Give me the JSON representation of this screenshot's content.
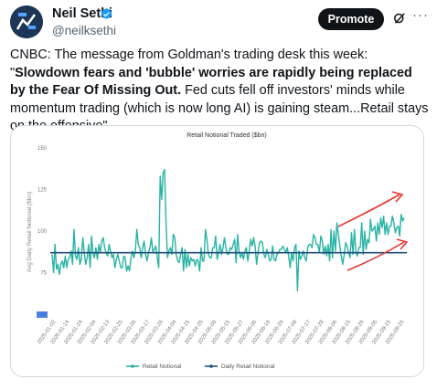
{
  "post": {
    "author_name": "Neil Sethi",
    "author_handle": "@neilksethi",
    "promote_label": "Promote",
    "more_icon": "ellipsis-icon",
    "grok_icon": "grok-icon",
    "verified_icon": "verified-badge-icon",
    "text_prefix": "CNBC: The message from Goldman's trading desk this week: \"",
    "text_bold": "Slowdown fears and 'bubble' worries are rapidly being replaced by the Fear Of Missing Out.",
    "text_suffix": " Fed cuts fell off investors' minds while momentum trading (which is now long AI) is gaining steam...Retail stays on the offensive\""
  },
  "colors": {
    "accent": "#1d9bf0",
    "series_teal": "#26b3a3",
    "series_navy": "#1f4e79",
    "annotation_red": "#e5322d"
  },
  "chart_data": {
    "type": "line",
    "title": "Retail Notional Traded ($bn)",
    "ylabel": "Avg Daily Retail Notional ($bn)",
    "ylim": [
      50,
      150
    ],
    "yticks": [
      50,
      75,
      100,
      125,
      150
    ],
    "x_tick_labels": [
      "2025-01-02",
      "2025-01-14",
      "2025-01-24",
      "2025-02-04",
      "2025-02-13",
      "2025-02-25",
      "2025-03-06",
      "2025-03-17",
      "2025-03-26",
      "2025-04-04",
      "2025-04-15",
      "2025-04-25",
      "2025-05-06",
      "2025-05-15",
      "2025-05-27",
      "2025-06-05",
      "2025-06-16",
      "2025-06-26",
      "2025-07-08",
      "2025-07-17",
      "2025-07-28",
      "2025-08-06",
      "2025-08-15",
      "2025-08-26",
      "2025-09-05",
      "2025-09-15",
      "2025-09-25"
    ],
    "legend": [
      "Retail Notional",
      "Daily Retail Notional"
    ],
    "legend_position": "bottom",
    "grid": false,
    "series": [
      {
        "name": "Retail Notional",
        "values": [
          86,
          75,
          92,
          77,
          80,
          74,
          80,
          82,
          78,
          85,
          78,
          83,
          84,
          88,
          80,
          101,
          85,
          83,
          90,
          80,
          83,
          96,
          87,
          80,
          84,
          92,
          78,
          97,
          86,
          84,
          90,
          83,
          92,
          87,
          94,
          96,
          90,
          87,
          85,
          92,
          88,
          84,
          86,
          78,
          83,
          86,
          82,
          78,
          78,
          85,
          84,
          76,
          79,
          76,
          84,
          88,
          84,
          88,
          101,
          92,
          90,
          84,
          90,
          94,
          86,
          82,
          87,
          90,
          96,
          87,
          89,
          91,
          84,
          78,
          133,
          119,
          135,
          137,
          105,
          84,
          88,
          90,
          86,
          98,
          96,
          86,
          82,
          81,
          86,
          90,
          76,
          89,
          78,
          86,
          79,
          84,
          82,
          83,
          79,
          83,
          82,
          76,
          90,
          82,
          82,
          101,
          95,
          86,
          84,
          84,
          90,
          90,
          97,
          83,
          87,
          92,
          86,
          90,
          96,
          90,
          86,
          86,
          90,
          89,
          92,
          95,
          81,
          98,
          88,
          84,
          87,
          83,
          88,
          90,
          82,
          88,
          95,
          91,
          96,
          91,
          80,
          87,
          93,
          94,
          93,
          86,
          84,
          89,
          86,
          82,
          83,
          91,
          83,
          82,
          86,
          87,
          89,
          89,
          91,
          89,
          87,
          90,
          85,
          78,
          87,
          82,
          90,
          92,
          64,
          88,
          83,
          85,
          88,
          84,
          82,
          90,
          92,
          92,
          90,
          98,
          96,
          92,
          92,
          87,
          97,
          94,
          86,
          91,
          85,
          92,
          82,
          101,
          84,
          100,
          88,
          105,
          98,
          91,
          85,
          80,
          86,
          93,
          91,
          87,
          84,
          99,
          86,
          101,
          87,
          85,
          90,
          90,
          105,
          86,
          100,
          89,
          95,
          93,
          107,
          100,
          101,
          103,
          94,
          105,
          98,
          108,
          102,
          109,
          98,
          105,
          98,
          103,
          103,
          109,
          105,
          99,
          102,
          103,
          97,
          110,
          106,
          108
        ]
      },
      {
        "name": "Daily Retail Notional",
        "values": [
          87
        ]
      }
    ]
  }
}
